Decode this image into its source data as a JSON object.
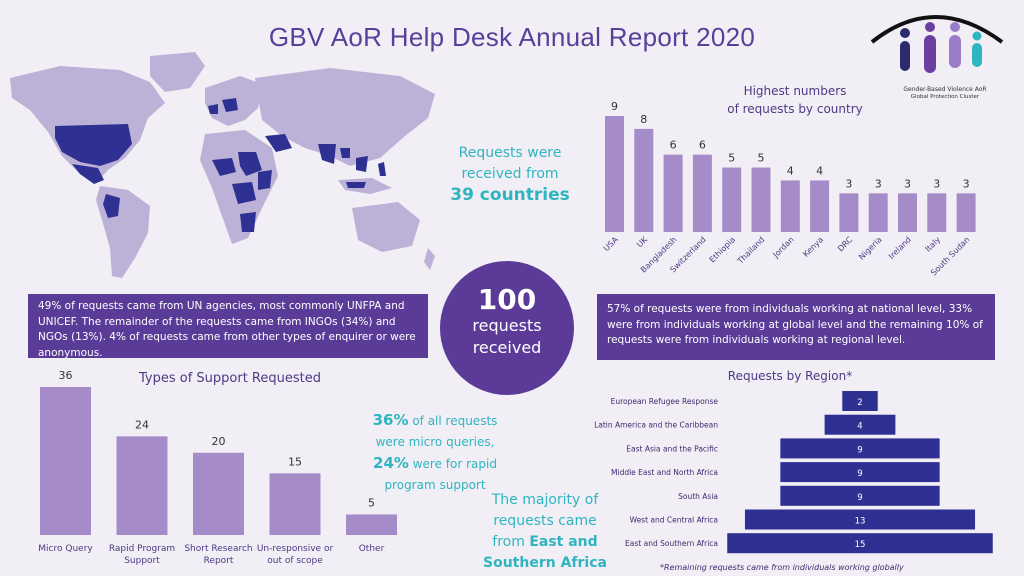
{
  "title": "GBV AoR Help Desk Annual Report 2020",
  "logo": {
    "text_line1": "Gender-Based Violence AoR",
    "text_line2": "Global Protection Cluster",
    "colors": [
      "#2b2b6e",
      "#6a3fa0",
      "#9a7cc8",
      "#2fb5c0"
    ]
  },
  "colors": {
    "background": "#f1eff5",
    "map_land": "#bcb1d6",
    "map_highlight": "#2e3192",
    "bar_light": "#a58cc8",
    "region_bar": "#2e3192",
    "teal": "#2fb5c0",
    "purple_box": "#5a3b97"
  },
  "countries_text": {
    "line1": "Requests were",
    "line2": "received from",
    "highlight": "39 countries"
  },
  "center": {
    "value": "100",
    "line1": "requests",
    "line2": "received"
  },
  "left_box": "49% of requests came from UN agencies, most commonly UNFPA and UNICEF. The remainder of the requests came from INGOs (34%) and NGOs (13%). 4% of requests came from other types of enquirer or were anonymous.",
  "right_box": "57% of requests were from individuals working at national level, 33% were from individuals working at global level and the remaining 10% of requests were from individuals working at regional level.",
  "micro_text": {
    "p1": "36%",
    "t1": " of all requests",
    "t2": "were micro queries,",
    "p2": "24%",
    "t3": " were for rapid",
    "t4": "program support"
  },
  "majority_text": {
    "line1": "The majority of",
    "line2": "requests came",
    "line3a": "from ",
    "line3b": "East and",
    "line4": "Southern Africa"
  },
  "footnote": "*Remaining requests came from individuals working globally",
  "chart_data": [
    {
      "type": "bar",
      "title": "Highest numbers of requests by country",
      "title_lines": [
        "Highest numbers",
        "of requests by country"
      ],
      "categories": [
        "USA",
        "UK",
        "Bangladesh",
        "Switzerland",
        "Ethiopia",
        "Thailand",
        "Jordan",
        "Kenya",
        "DRC",
        "Nigeria",
        "Ireland",
        "Italy",
        "South Sudan"
      ],
      "values": [
        9,
        8,
        6,
        6,
        5,
        5,
        4,
        4,
        3,
        3,
        3,
        3,
        3
      ],
      "ylim": [
        0,
        9
      ]
    },
    {
      "type": "bar",
      "title": "Types of Support Requested",
      "categories": [
        [
          "Micro Query"
        ],
        [
          "Rapid Program",
          "Support"
        ],
        [
          "Short Research",
          "Report"
        ],
        [
          "Un-responsive or",
          "out of scope"
        ],
        [
          "Other"
        ]
      ],
      "values": [
        36,
        24,
        20,
        15,
        5
      ],
      "ylim": [
        0,
        36
      ]
    },
    {
      "type": "bar",
      "orientation": "horizontal",
      "title": "Requests by Region*",
      "categories": [
        "European Refugee Response",
        "Latin America and the Caribbean",
        "East Asia and the Pacific",
        "Middle East and North Africa",
        "South Asia",
        "West and Central Africa",
        "East and Southern Africa"
      ],
      "values": [
        2,
        4,
        9,
        9,
        9,
        13,
        15
      ],
      "xlim": [
        0,
        15
      ]
    }
  ]
}
